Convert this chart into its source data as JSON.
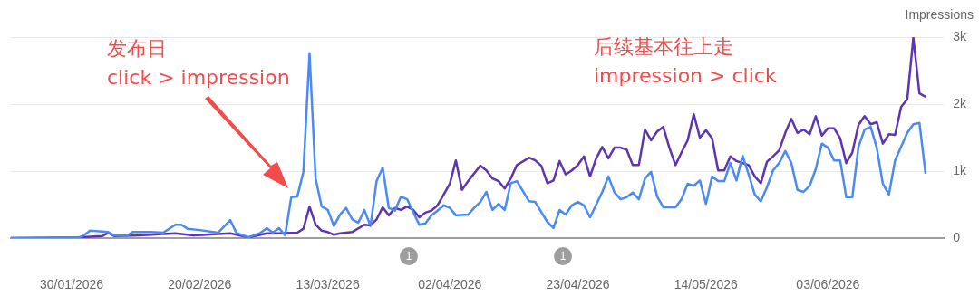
{
  "chart_data": {
    "type": "line",
    "xlim": [
      "2026-01-20",
      "2026-06-22"
    ],
    "xticks": [
      {
        "value": "2026-01-30",
        "label": "30/01/2026"
      },
      {
        "value": "2026-02-20",
        "label": "20/02/2026"
      },
      {
        "value": "2026-03-13",
        "label": "13/03/2026"
      },
      {
        "value": "2026-04-02",
        "label": "02/04/2026"
      },
      {
        "value": "2026-04-23",
        "label": "23/04/2026"
      },
      {
        "value": "2026-05-14",
        "label": "14/05/2026"
      },
      {
        "value": "2026-06-03",
        "label": "03/06/2026"
      }
    ],
    "ylim": [
      0,
      3000
    ],
    "yticks": [
      0,
      {
        "value": 1000,
        "label": "1k"
      },
      {
        "value": 2000,
        "label": "2k"
      },
      {
        "value": 3000,
        "label": "3k"
      }
    ],
    "ylabel": "Impressions",
    "grid": "y",
    "legend": false,
    "marker": "none",
    "line_style": "solid",
    "annotations": [
      "发布日\nclick > impression",
      "后续基本往上走\nimpression > click",
      "1",
      "1"
    ],
    "series": [
      {
        "color": "#4a8af4",
        "x": [
          "2026-01-20",
          "2026-01-31",
          "2026-02-01",
          "2026-02-02",
          "2026-02-05",
          "2026-02-06",
          "2026-02-08",
          "2026-02-09",
          "2026-02-12",
          "2026-02-14",
          "2026-02-16",
          "2026-02-17",
          "2026-02-18",
          "2026-02-20",
          "2026-02-23",
          "2026-02-25",
          "2026-02-26",
          "2026-02-28",
          "2026-03-02",
          "2026-03-03",
          "2026-03-04",
          "2026-03-05",
          "2026-03-06",
          "2026-03-07",
          "2026-03-08",
          "2026-03-09",
          "2026-03-10",
          "2026-03-11",
          "2026-03-12",
          "2026-03-13",
          "2026-03-14",
          "2026-03-15",
          "2026-03-16",
          "2026-03-17",
          "2026-03-18",
          "2026-03-19",
          "2026-03-20",
          "2026-03-21",
          "2026-03-22",
          "2026-03-23",
          "2026-03-24",
          "2026-03-25",
          "2026-03-26",
          "2026-03-28",
          "2026-03-29",
          "2026-03-30",
          "2026-03-31",
          "2026-04-01",
          "2026-04-02",
          "2026-04-03",
          "2026-04-05",
          "2026-04-06",
          "2026-04-07",
          "2026-04-08",
          "2026-04-09",
          "2026-04-10",
          "2026-04-11",
          "2026-04-12",
          "2026-04-13",
          "2026-04-15",
          "2026-04-16",
          "2026-04-18",
          "2026-04-19",
          "2026-04-20",
          "2026-04-21",
          "2026-04-22",
          "2026-04-23",
          "2026-04-24",
          "2026-04-25",
          "2026-04-27",
          "2026-04-28",
          "2026-04-29",
          "2026-04-30",
          "2026-05-01",
          "2026-05-02",
          "2026-05-03",
          "2026-05-04",
          "2026-05-05",
          "2026-05-06",
          "2026-05-07",
          "2026-05-09",
          "2026-05-10",
          "2026-05-11",
          "2026-05-12",
          "2026-05-13",
          "2026-05-14",
          "2026-05-15",
          "2026-05-16",
          "2026-05-17",
          "2026-05-18",
          "2026-05-19",
          "2026-05-20",
          "2026-05-21",
          "2026-05-22",
          "2026-05-23",
          "2026-05-24",
          "2026-05-25",
          "2026-05-26",
          "2026-05-27",
          "2026-05-28",
          "2026-05-29",
          "2026-05-30",
          "2026-05-31",
          "2026-06-01",
          "2026-06-02",
          "2026-06-03",
          "2026-06-04",
          "2026-06-05",
          "2026-06-06",
          "2026-06-07",
          "2026-06-08",
          "2026-06-09",
          "2026-06-10",
          "2026-06-11",
          "2026-06-12",
          "2026-06-13",
          "2026-06-14",
          "2026-06-16",
          "2026-06-17",
          "2026-06-18",
          "2026-06-19"
        ],
        "values": [
          0,
          0,
          40,
          110,
          90,
          40,
          30,
          90,
          90,
          80,
          200,
          200,
          140,
          120,
          80,
          270,
          80,
          10,
          80,
          150,
          80,
          150,
          40,
          610,
          620,
          990,
          2760,
          890,
          470,
          420,
          180,
          350,
          450,
          280,
          230,
          420,
          180,
          850,
          1050,
          450,
          410,
          620,
          580,
          200,
          220,
          340,
          410,
          490,
          450,
          340,
          350,
          450,
          540,
          690,
          420,
          510,
          420,
          820,
          850,
          550,
          540,
          240,
          150,
          420,
          350,
          490,
          540,
          490,
          310,
          690,
          920,
          680,
          580,
          610,
          680,
          580,
          890,
          990,
          620,
          460,
          460,
          580,
          810,
          780,
          860,
          510,
          920,
          850,
          850,
          1120,
          860,
          1230,
          950,
          650,
          550,
          760,
          1010,
          1120,
          1300,
          1120,
          720,
          690,
          780,
          1030,
          1410,
          1350,
          1160,
          1160,
          610,
          610,
          1360,
          1620,
          1660,
          1350,
          810,
          650,
          1160,
          1570,
          1700,
          1720,
          960
        ]
      },
      {
        "color": "#5e35b1",
        "x": [
          "2026-01-20",
          "2026-01-31",
          "2026-02-04",
          "2026-02-05",
          "2026-02-06",
          "2026-02-10",
          "2026-02-16",
          "2026-02-19",
          "2026-02-25",
          "2026-02-28",
          "2026-03-03",
          "2026-03-05",
          "2026-03-08",
          "2026-03-09",
          "2026-03-10",
          "2026-03-11",
          "2026-03-12",
          "2026-03-13",
          "2026-03-14",
          "2026-03-15",
          "2026-03-17",
          "2026-03-19",
          "2026-03-20",
          "2026-03-21",
          "2026-03-22",
          "2026-03-23",
          "2026-03-24",
          "2026-03-25",
          "2026-03-26",
          "2026-03-27",
          "2026-03-28",
          "2026-03-29",
          "2026-03-30",
          "2026-03-31",
          "2026-04-01",
          "2026-04-02",
          "2026-04-03",
          "2026-04-04",
          "2026-04-05",
          "2026-04-07",
          "2026-04-08",
          "2026-04-09",
          "2026-04-10",
          "2026-04-11",
          "2026-04-12",
          "2026-04-13",
          "2026-04-15",
          "2026-04-16",
          "2026-04-17",
          "2026-04-18",
          "2026-04-19",
          "2026-04-20",
          "2026-04-21",
          "2026-04-22",
          "2026-04-23",
          "2026-04-24",
          "2026-04-25",
          "2026-04-26",
          "2026-04-27",
          "2026-04-28",
          "2026-04-29",
          "2026-04-30",
          "2026-05-01",
          "2026-05-02",
          "2026-05-03",
          "2026-05-04",
          "2026-05-05",
          "2026-05-06",
          "2026-05-07",
          "2026-05-08",
          "2026-05-09",
          "2026-05-10",
          "2026-05-11",
          "2026-05-12",
          "2026-05-13",
          "2026-05-14",
          "2026-05-15",
          "2026-05-16",
          "2026-05-17",
          "2026-05-18",
          "2026-05-19",
          "2026-05-20",
          "2026-05-21",
          "2026-05-22",
          "2026-05-23",
          "2026-05-24",
          "2026-05-25",
          "2026-05-26",
          "2026-05-27",
          "2026-05-28",
          "2026-05-29",
          "2026-05-30",
          "2026-05-31",
          "2026-06-01",
          "2026-06-02",
          "2026-06-03",
          "2026-06-04",
          "2026-06-05",
          "2026-06-06",
          "2026-06-07",
          "2026-06-08",
          "2026-06-09",
          "2026-06-10",
          "2026-06-11",
          "2026-06-12",
          "2026-06-13",
          "2026-06-14",
          "2026-06-15",
          "2026-06-16",
          "2026-06-17",
          "2026-06-18",
          "2026-06-19"
        ],
        "values": [
          0,
          10,
          30,
          80,
          30,
          40,
          70,
          40,
          70,
          10,
          70,
          70,
          80,
          140,
          470,
          200,
          110,
          90,
          50,
          70,
          90,
          200,
          190,
          280,
          460,
          340,
          450,
          420,
          470,
          420,
          310,
          380,
          410,
          490,
          650,
          810,
          1160,
          720,
          850,
          1080,
          1010,
          890,
          850,
          740,
          890,
          1090,
          1200,
          1160,
          1080,
          820,
          860,
          1150,
          950,
          1010,
          1090,
          1220,
          920,
          1190,
          1360,
          1190,
          1350,
          1350,
          1320,
          1090,
          1090,
          1620,
          1460,
          1590,
          1660,
          1350,
          1090,
          1280,
          1460,
          1850,
          1500,
          1610,
          1490,
          1010,
          1010,
          1220,
          1150,
          1120,
          1090,
          920,
          820,
          1140,
          1220,
          1310,
          1570,
          1780,
          1570,
          1620,
          1550,
          1820,
          1530,
          1640,
          1640,
          1490,
          1120,
          1280,
          1690,
          1820,
          1700,
          1730,
          1410,
          1550,
          1540,
          1960,
          2070,
          2990,
          2160,
          2110
        ]
      }
    ]
  }
}
